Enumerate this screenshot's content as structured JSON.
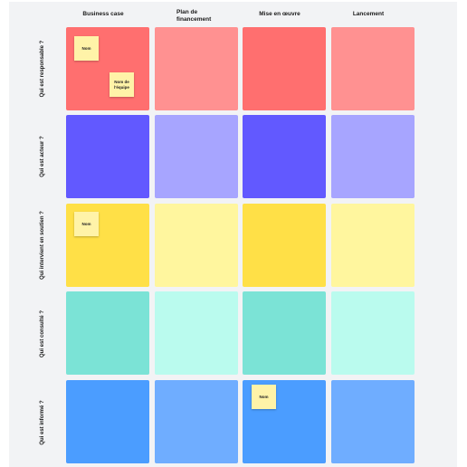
{
  "columns": [
    "Business case",
    "Plan de financement",
    "Mise en œuvre",
    "Lancement"
  ],
  "rows": [
    {
      "label": "Qui est responsable ?",
      "colors": [
        "#ff6f6f",
        "#ff9191",
        "#ff6f6f",
        "#ff9191"
      ]
    },
    {
      "label": "Qui est acteur ?",
      "colors": [
        "#6259ff",
        "#a7a5ff",
        "#6259ff",
        "#a7a5ff"
      ]
    },
    {
      "label": "Qui intervient en soutien ?",
      "colors": [
        "#ffe047",
        "#fff69e",
        "#ffe047",
        "#fff69e"
      ]
    },
    {
      "label": "Qui est consulté ?",
      "colors": [
        "#7be3d6",
        "#bafbee",
        "#7be3d6",
        "#bafbee"
      ]
    },
    {
      "label": "Qui est informé ?",
      "colors": [
        "#4b9dff",
        "#6fadff",
        "#4b9dff",
        "#6fadff"
      ]
    }
  ],
  "stickies": [
    {
      "text": "Nom",
      "row": 0,
      "col": 0
    },
    {
      "text": "Nom de l'équipe",
      "row": 0,
      "col": 0
    },
    {
      "text": "Nom",
      "row": 2,
      "col": 0
    },
    {
      "text": "Nom",
      "row": 4,
      "col": 2
    }
  ]
}
